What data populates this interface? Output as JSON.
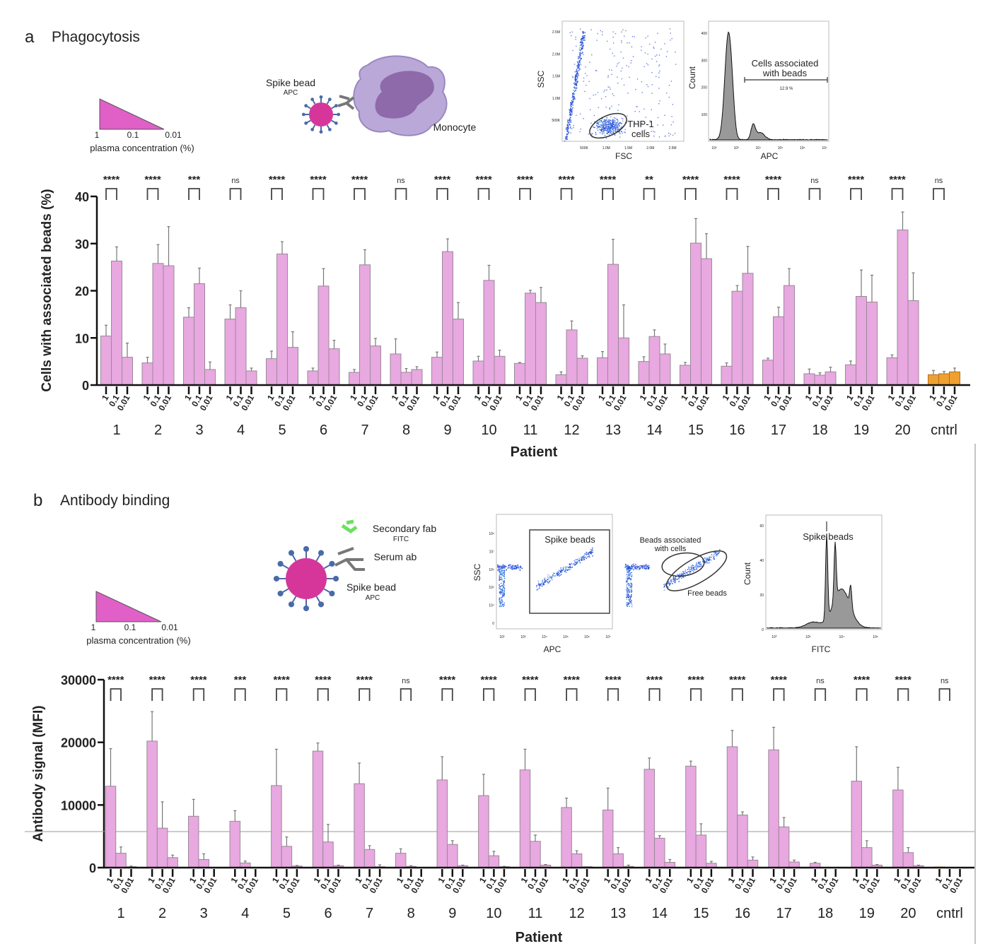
{
  "panel_a": {
    "letter": "a",
    "title": "Phagocytosis",
    "legend": {
      "ticks": [
        "1",
        "0.1",
        "0.01"
      ],
      "label": "plasma concentration (%)"
    },
    "schematic": {
      "bead_label": "Spike bead",
      "bead_sub": "APC",
      "cell_label": "Monocyte"
    },
    "flow_scatter": {
      "xlabel": "FSC",
      "ylabel": "SSC",
      "xticks": [
        "500K",
        "1.0M",
        "1.5M",
        "2.0M",
        "2.5M"
      ],
      "yticks": [
        "500K",
        "1.0M",
        "1.5M",
        "2.0M",
        "2.5M"
      ],
      "gate_line1": "THP-1",
      "gate_line2": "cells"
    },
    "flow_hist": {
      "xlabel": "APC",
      "ylabel": "Count",
      "yticks": [
        "100",
        "200",
        "300",
        "400"
      ],
      "xticks": [
        "10²",
        "10³",
        "10⁴",
        "10⁵",
        "10⁶",
        "10⁷"
      ],
      "gate_line1": "Cells associated",
      "gate_line2": "with beads",
      "gate_value": "12.9 %"
    }
  },
  "panel_b": {
    "letter": "b",
    "title": "Antibody binding",
    "legend": {
      "ticks": [
        "1",
        "0.1",
        "0.01"
      ],
      "label": "plasma concentration (%)"
    },
    "schematic": {
      "fab_label": "Secondary fab",
      "fab_sub": "FITC",
      "serum_label": "Serum ab",
      "bead_label": "Spike bead",
      "bead_sub": "APC"
    },
    "flow_scatter1": {
      "xlabel": "APC",
      "ylabel": "SSC",
      "gate_label": "Spike beads",
      "xticks": [
        "10²",
        "10³",
        "10⁴",
        "10⁵",
        "10⁶",
        "10⁷"
      ],
      "yticks": [
        "0",
        "10⁴",
        "10⁵",
        "10⁶",
        "10⁷",
        "10⁸"
      ]
    },
    "flow_scatter2": {
      "gate1_line1": "Beads associated",
      "gate1_line2": "with cells",
      "gate2_label": "Free beads"
    },
    "flow_hist": {
      "xlabel": "FITC",
      "ylabel": "Count",
      "gate_label": "Spike beads",
      "yticks": [
        "0",
        "20",
        "40",
        "60"
      ],
      "xticks": [
        "10⁰",
        "10²",
        "10⁴",
        "10⁶"
      ]
    }
  },
  "colors": {
    "patient_bar": "#e8a8e0",
    "control_bar": "#f0a030",
    "bar_outline": "#9a8a98",
    "bead": "#d6369a",
    "spike": "#4a6aa8",
    "monocyte": "#b9a8d8",
    "nucleus": "#8e6aaa",
    "fab": "#6ee060",
    "legend_triangle": "#e060c8"
  },
  "chart_data": [
    {
      "type": "bar",
      "title": "",
      "xlabel": "Patient",
      "ylabel": "Cells with associated beads (%)",
      "ylim": [
        0,
        40
      ],
      "yticks": [
        "0",
        "10",
        "20",
        "30",
        "40"
      ],
      "ytick_values": [
        0,
        10,
        20,
        30,
        40
      ],
      "grid": false,
      "subcategories": [
        "1",
        "0.1",
        "0.01"
      ],
      "categories": [
        "1",
        "2",
        "3",
        "4",
        "5",
        "6",
        "7",
        "8",
        "9",
        "10",
        "11",
        "12",
        "13",
        "14",
        "15",
        "16",
        "17",
        "18",
        "19",
        "20",
        "cntrl"
      ],
      "values": [
        [
          10.4,
          26.3,
          5.9
        ],
        [
          4.7,
          25.8,
          25.3
        ],
        [
          14.4,
          21.5,
          3.3
        ],
        [
          14.0,
          16.4,
          3.0
        ],
        [
          5.6,
          27.8,
          8.0
        ],
        [
          3.0,
          21.0,
          7.7
        ],
        [
          2.7,
          25.5,
          8.3
        ],
        [
          6.6,
          2.7,
          3.3
        ],
        [
          5.9,
          28.3,
          14.0
        ],
        [
          5.1,
          22.2,
          6.1
        ],
        [
          4.6,
          19.5,
          17.5
        ],
        [
          2.2,
          11.7,
          5.7
        ],
        [
          5.8,
          25.6,
          10.0
        ],
        [
          5.0,
          10.3,
          6.6
        ],
        [
          4.2,
          30.1,
          26.8
        ],
        [
          4.0,
          19.9,
          23.7
        ],
        [
          5.3,
          14.5,
          21.1
        ],
        [
          2.4,
          2.1,
          2.8
        ],
        [
          4.3,
          18.8,
          17.6
        ],
        [
          5.8,
          32.9,
          17.9
        ],
        [
          2.2,
          2.4,
          2.8
        ]
      ],
      "errors": [
        [
          2.3,
          3.0,
          3.0
        ],
        [
          1.2,
          4.0,
          8.3
        ],
        [
          2.0,
          3.3,
          1.6
        ],
        [
          3.0,
          3.6,
          0.6
        ],
        [
          1.6,
          2.6,
          3.3
        ],
        [
          0.6,
          3.7,
          1.8
        ],
        [
          0.6,
          3.2,
          1.6
        ],
        [
          3.2,
          0.8,
          0.6
        ],
        [
          1.1,
          2.7,
          3.5
        ],
        [
          1.0,
          3.2,
          1.3
        ],
        [
          0.2,
          0.6,
          3.2
        ],
        [
          0.6,
          1.9,
          0.5
        ],
        [
          1.3,
          5.3,
          7.0
        ],
        [
          1.0,
          1.4,
          2.1
        ],
        [
          0.6,
          5.2,
          5.3
        ],
        [
          0.7,
          1.2,
          5.7
        ],
        [
          0.4,
          2.0,
          3.6
        ],
        [
          1.0,
          0.5,
          1.0
        ],
        [
          0.8,
          5.6,
          5.7
        ],
        [
          0.6,
          3.8,
          5.9
        ],
        [
          0.9,
          0.5,
          0.8
        ]
      ],
      "significance": [
        "****",
        "****",
        "***",
        "ns",
        "****",
        "****",
        "****",
        "ns",
        "****",
        "****",
        "****",
        "****",
        "****",
        "**",
        "****",
        "****",
        "****",
        "ns",
        "****",
        "****",
        "ns"
      ]
    },
    {
      "type": "bar",
      "title": "",
      "xlabel": "Patient",
      "ylabel": "Antibody signal (MFI)",
      "ylim": [
        0,
        30000
      ],
      "yticks": [
        "0",
        "10000",
        "20000",
        "30000"
      ],
      "ytick_values": [
        0,
        10000,
        20000,
        30000
      ],
      "grid": false,
      "reference_line": 5750,
      "subcategories": [
        "1",
        "0.1",
        "0.01"
      ],
      "categories": [
        "1",
        "2",
        "3",
        "4",
        "5",
        "6",
        "7",
        "8",
        "9",
        "10",
        "11",
        "12",
        "13",
        "14",
        "15",
        "16",
        "17",
        "18",
        "19",
        "20",
        "cntrl"
      ],
      "values": [
        [
          13000,
          2300,
          150
        ],
        [
          20200,
          6300,
          1600
        ],
        [
          8200,
          1300,
          50
        ],
        [
          7400,
          750,
          0
        ],
        [
          13100,
          3400,
          250
        ],
        [
          18600,
          4100,
          300
        ],
        [
          13400,
          2900,
          150
        ],
        [
          2300,
          200,
          0
        ],
        [
          14000,
          3700,
          300
        ],
        [
          11500,
          1900,
          150
        ],
        [
          15600,
          4200,
          400
        ],
        [
          9600,
          2200,
          150
        ],
        [
          9200,
          2200,
          200
        ],
        [
          15700,
          4700,
          850
        ],
        [
          16200,
          5200,
          700
        ],
        [
          19300,
          8400,
          1200
        ],
        [
          18800,
          6500,
          900
        ],
        [
          700,
          50,
          0
        ],
        [
          13800,
          3200,
          400
        ],
        [
          12400,
          2400,
          300
        ],
        [
          100,
          0,
          0
        ]
      ],
      "errors": [
        [
          6000,
          1000,
          100
        ],
        [
          4700,
          4200,
          400
        ],
        [
          2700,
          900,
          0
        ],
        [
          1700,
          300,
          0
        ],
        [
          5800,
          1500,
          100
        ],
        [
          1300,
          2800,
          100
        ],
        [
          3300,
          600,
          300
        ],
        [
          700,
          100,
          0
        ],
        [
          3700,
          600,
          100
        ],
        [
          3400,
          700,
          50
        ],
        [
          3300,
          1000,
          100
        ],
        [
          1500,
          500,
          0
        ],
        [
          3500,
          1000,
          200
        ],
        [
          1800,
          400,
          450
        ],
        [
          800,
          1800,
          300
        ],
        [
          2600,
          500,
          500
        ],
        [
          3600,
          1500,
          300
        ],
        [
          150,
          0,
          0
        ],
        [
          5500,
          1100,
          100
        ],
        [
          3600,
          800,
          100
        ],
        [
          0,
          0,
          0
        ]
      ],
      "significance": [
        "****",
        "****",
        "****",
        "***",
        "****",
        "****",
        "****",
        "ns",
        "****",
        "****",
        "****",
        "****",
        "****",
        "****",
        "****",
        "****",
        "****",
        "ns",
        "****",
        "****",
        "ns"
      ]
    }
  ]
}
